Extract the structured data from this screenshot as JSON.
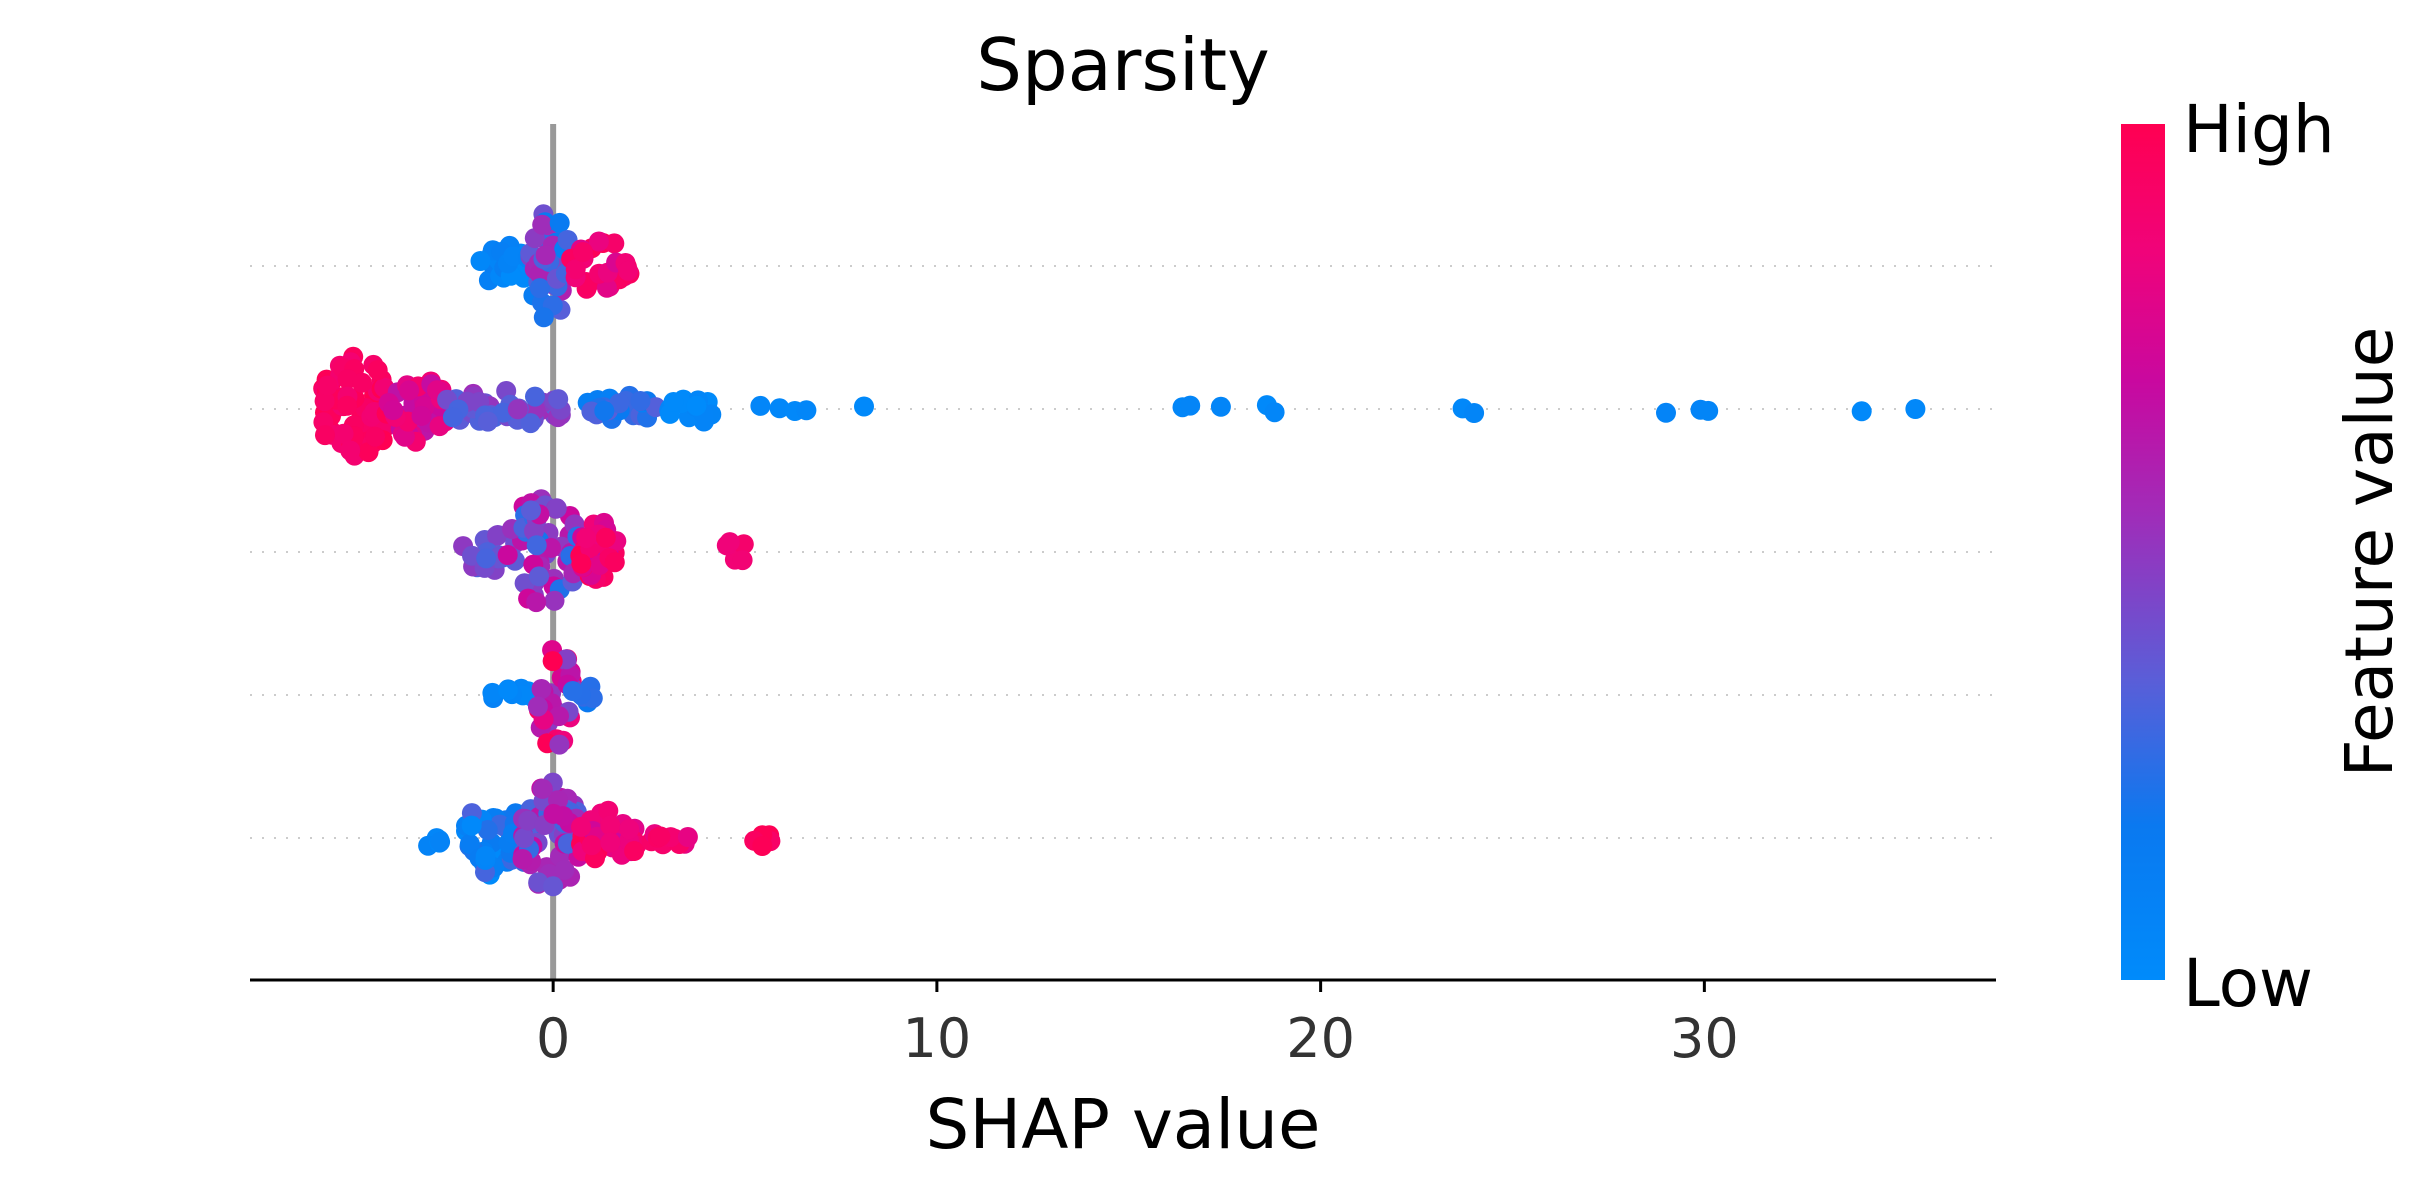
{
  "chart_data": {
    "type": "beeswarm",
    "title": "Sparsity",
    "xlabel": "SHAP value",
    "ylabel": "",
    "xlim": [
      -7.9,
      37.6
    ],
    "x_ticks": [
      0,
      10,
      20,
      30
    ],
    "x_tick_labels": [
      "0",
      "10",
      "20",
      "30"
    ],
    "zero_line": 0,
    "y_tick_labels": [],
    "colorbar": {
      "title": "Feature value",
      "high_label": "High",
      "low_label": "Low",
      "colormap": [
        "#008bfb",
        "#ff0052"
      ]
    },
    "colors": {
      "low": "#008bfb",
      "high": "#ff0052",
      "zero_line": "#999999",
      "axis": "#000000",
      "row_grid": "#cccccc"
    },
    "rows": [
      {
        "row": 1,
        "segments": [
          {
            "x0": -1.9,
            "x1": -0.6,
            "n": 28,
            "spread": 0.45,
            "v": [
              0.0,
              0.15
            ]
          },
          {
            "x0": -0.6,
            "x1": 0.4,
            "n": 45,
            "spread": 1.0,
            "v": [
              0.1,
              0.6
            ]
          },
          {
            "x0": 0.4,
            "x1": 2.0,
            "n": 28,
            "spread": 0.5,
            "v": [
              0.75,
              1.0
            ]
          }
        ],
        "points": []
      },
      {
        "row": 2,
        "segments": [
          {
            "x0": -6.0,
            "x1": -4.3,
            "n": 70,
            "spread": 1.0,
            "v": [
              0.88,
              1.0
            ]
          },
          {
            "x0": -4.3,
            "x1": -2.8,
            "n": 45,
            "spread": 0.6,
            "v": [
              0.6,
              0.9
            ]
          },
          {
            "x0": -2.8,
            "x1": 0.4,
            "n": 40,
            "spread": 0.35,
            "v": [
              0.3,
              0.55
            ]
          },
          {
            "x0": 0.9,
            "x1": 3.0,
            "n": 22,
            "spread": 0.25,
            "v": [
              0.1,
              0.35
            ]
          },
          {
            "x0": 3.0,
            "x1": 4.2,
            "n": 14,
            "spread": 0.3,
            "v": [
              0.0,
              0.08
            ]
          }
        ],
        "points": [
          5.4,
          5.9,
          6.3,
          6.6,
          8.1,
          16.4,
          16.6,
          17.4,
          18.6,
          18.8,
          23.7,
          24.0,
          29.0,
          29.9,
          30.1,
          34.1,
          35.5
        ]
      },
      {
        "row": 3,
        "segments": [
          {
            "x0": -2.4,
            "x1": -0.9,
            "n": 20,
            "spread": 0.35,
            "v": [
              0.3,
              0.5
            ]
          },
          {
            "x0": -1.2,
            "x1": 0.7,
            "n": 55,
            "spread": 1.0,
            "v": [
              0.2,
              0.75
            ]
          },
          {
            "x0": 0.7,
            "x1": 1.7,
            "n": 32,
            "spread": 0.55,
            "v": [
              0.7,
              1.0
            ]
          },
          {
            "x0": 4.5,
            "x1": 5.1,
            "n": 5,
            "spread": 0.25,
            "v": [
              0.85,
              0.95
            ]
          }
        ],
        "points": []
      },
      {
        "row": 4,
        "segments": [
          {
            "x0": -1.6,
            "x1": -0.4,
            "n": 10,
            "spread": 0.12,
            "v": [
              0.0,
              0.1
            ]
          },
          {
            "x0": -0.4,
            "x1": 0.5,
            "n": 32,
            "spread": 1.0,
            "v": [
              0.4,
              1.0
            ]
          },
          {
            "x0": 0.5,
            "x1": 1.1,
            "n": 6,
            "spread": 0.2,
            "v": [
              0.1,
              0.3
            ]
          }
        ],
        "points": []
      },
      {
        "row": 5,
        "segments": [
          {
            "x0": -3.5,
            "x1": -2.8,
            "n": 5,
            "spread": 0.18,
            "v": [
              0.0,
              0.1
            ]
          },
          {
            "x0": -2.3,
            "x1": -0.6,
            "n": 45,
            "spread": 0.7,
            "v": [
              0.0,
              0.35
            ]
          },
          {
            "x0": -0.8,
            "x1": 0.7,
            "n": 60,
            "spread": 1.0,
            "v": [
              0.25,
              0.7
            ]
          },
          {
            "x0": 0.7,
            "x1": 2.2,
            "n": 35,
            "spread": 0.5,
            "v": [
              0.7,
              1.0
            ]
          },
          {
            "x0": 2.4,
            "x1": 3.8,
            "n": 10,
            "spread": 0.18,
            "v": [
              0.8,
              0.95
            ]
          },
          {
            "x0": 5.2,
            "x1": 5.7,
            "n": 5,
            "spread": 0.15,
            "v": [
              0.92,
              1.0
            ]
          }
        ],
        "points": []
      }
    ]
  }
}
